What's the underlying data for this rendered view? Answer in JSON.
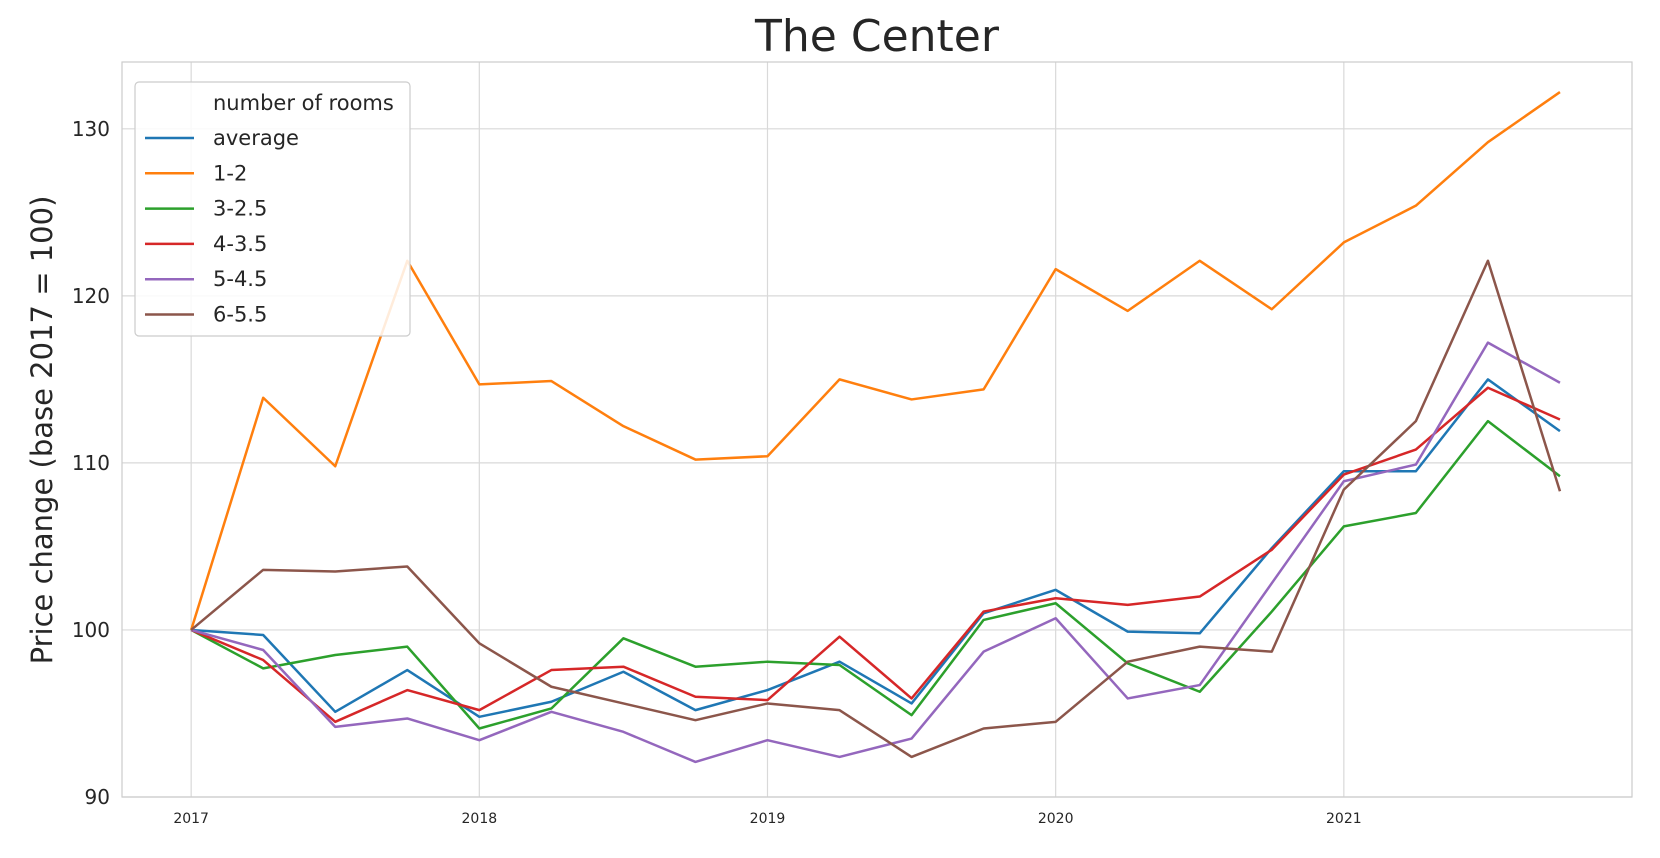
{
  "chart_data": {
    "type": "line",
    "title": "The Center",
    "xlabel": "",
    "ylabel": "Price change (base 2017 = 100)",
    "ylim": [
      90,
      134
    ],
    "xlim": [
      2016.76,
      2022.0
    ],
    "yticks": [
      90,
      100,
      110,
      120,
      130
    ],
    "xticks": [
      "2017",
      "2018",
      "2019",
      "2020",
      "2021"
    ],
    "grid": true,
    "legend": {
      "title": "number of rooms",
      "placement": "top-left"
    },
    "x": [
      2017.0,
      2017.25,
      2017.5,
      2017.75,
      2018.0,
      2018.25,
      2018.5,
      2018.75,
      2019.0,
      2019.25,
      2019.5,
      2019.75,
      2020.0,
      2020.25,
      2020.5,
      2020.75,
      2021.0,
      2021.25,
      2021.5,
      2021.75
    ],
    "series": [
      {
        "name": "average",
        "color": "#1f77b4",
        "values": [
          100,
          99.7,
          95.1,
          97.6,
          94.8,
          95.7,
          97.5,
          95.2,
          96.4,
          98.1,
          95.6,
          101.0,
          102.4,
          99.9,
          99.8,
          104.9,
          109.5,
          109.5,
          115.0,
          111.9
        ]
      },
      {
        "name": "1-2",
        "color": "#ff7f0e",
        "values": [
          100,
          113.9,
          109.8,
          122.1,
          114.7,
          114.9,
          112.2,
          110.2,
          110.4,
          115.0,
          113.8,
          114.4,
          121.6,
          119.1,
          122.1,
          119.2,
          123.2,
          125.4,
          129.2,
          132.2
        ]
      },
      {
        "name": "3-2.5",
        "color": "#2ca02c",
        "values": [
          100,
          97.7,
          98.5,
          99.0,
          94.1,
          95.3,
          99.5,
          97.8,
          98.1,
          97.9,
          94.9,
          100.6,
          101.6,
          98.0,
          96.3,
          101.1,
          106.2,
          107.0,
          112.5,
          109.2
        ]
      },
      {
        "name": "4-3.5",
        "color": "#d62728",
        "values": [
          100,
          98.2,
          94.5,
          96.4,
          95.2,
          97.6,
          97.8,
          96.0,
          95.8,
          99.6,
          95.9,
          101.1,
          101.9,
          101.5,
          102.0,
          104.8,
          109.3,
          110.8,
          114.5,
          112.6
        ]
      },
      {
        "name": "5-4.5",
        "color": "#9467bd",
        "values": [
          100,
          98.8,
          94.2,
          94.7,
          93.4,
          95.1,
          93.9,
          92.1,
          93.4,
          92.4,
          93.5,
          98.7,
          100.7,
          95.9,
          96.7,
          102.8,
          108.9,
          109.9,
          117.2,
          114.8
        ]
      },
      {
        "name": "6-5.5",
        "color": "#8c564b",
        "values": [
          100,
          103.6,
          103.5,
          103.8,
          99.2,
          96.6,
          95.6,
          94.6,
          95.6,
          95.2,
          92.4,
          94.1,
          94.5,
          98.1,
          99.0,
          98.7,
          108.4,
          112.5,
          122.1,
          108.3
        ]
      }
    ]
  }
}
